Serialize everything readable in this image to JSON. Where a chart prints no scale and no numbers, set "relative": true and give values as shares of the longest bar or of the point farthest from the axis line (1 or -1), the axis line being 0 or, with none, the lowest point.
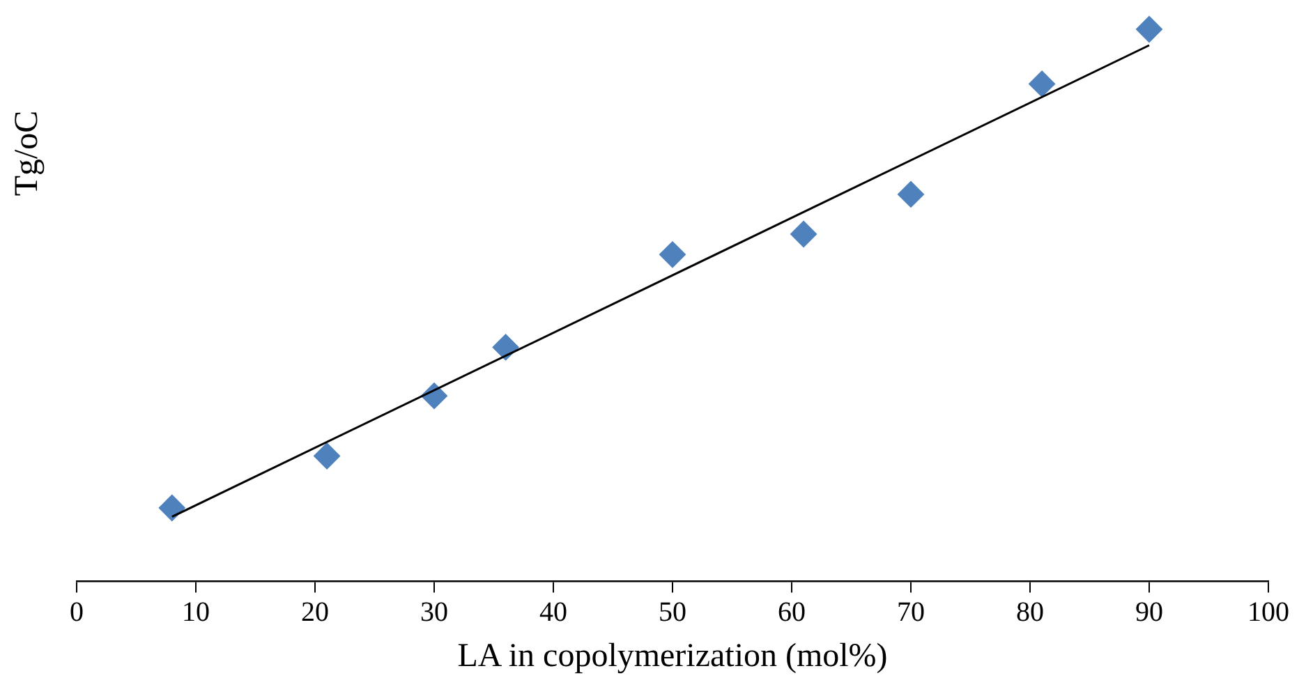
{
  "chart_data": {
    "type": "scatter",
    "xlabel": "LA in copolymerization (mol%)",
    "ylabel": "Tg/oC",
    "relative": true,
    "x": [
      8,
      21,
      30,
      36,
      50,
      61,
      70,
      81,
      90
    ],
    "xlim": [
      0,
      100
    ],
    "xticks": [
      0,
      10,
      20,
      30,
      40,
      50,
      60,
      70,
      80,
      90,
      100
    ],
    "grid": false,
    "legend": false,
    "marker": "diamond",
    "series": [
      {
        "color": "#4f81bd",
        "values": [
          0.133,
          0.227,
          0.336,
          0.424,
          0.592,
          0.629,
          0.701,
          0.901,
          1
        ]
      },
      {
        "type": "line",
        "color": "#000000",
        "x": [
          8,
          90
        ],
        "values": [
          0.117,
          0.971
        ],
        "marker": "none"
      }
    ]
  }
}
